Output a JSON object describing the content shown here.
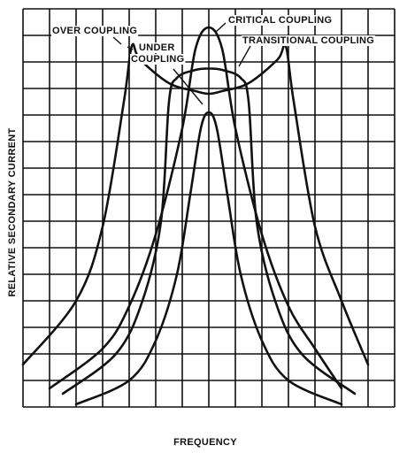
{
  "chart_data": {
    "type": "line",
    "xlabel": "FREQUENCY",
    "ylabel": "RELATIVE SECONDARY CURRENT",
    "grid": true,
    "annotations": [
      {
        "text": "OVER COUPLING",
        "target": "over-coupling"
      },
      {
        "text": "CRITICAL COUPLING",
        "target": "critical-coupling"
      },
      {
        "text": "TRANSITIONAL COUPLING",
        "target": "transitional-coupling"
      },
      {
        "text": "UNDER",
        "target": "under-coupling"
      },
      {
        "text": "COUPLING",
        "target": "under-coupling"
      }
    ],
    "xlim": [
      0,
      14
    ],
    "ylim": [
      0,
      15
    ],
    "series": [
      {
        "name": "OVER COUPLING",
        "key": "over-coupling",
        "x": [
          0,
          2,
          3,
          3.8,
          4.1,
          4.4,
          5.5,
          6.5,
          7,
          7.5,
          8.5,
          9.6,
          9.9,
          10.2,
          11,
          12,
          13
        ],
        "y": [
          1.6,
          4,
          6.8,
          11.5,
          13.6,
          13.1,
          12.2,
          11.9,
          11.8,
          11.9,
          12.2,
          13.1,
          13.6,
          11.5,
          6.8,
          4,
          1.6
        ]
      },
      {
        "name": "CRITICAL COUPLING",
        "key": "critical-coupling",
        "x": [
          1,
          3,
          4,
          5,
          6,
          6.5,
          7,
          7.5,
          8,
          9,
          10,
          11,
          12
        ],
        "y": [
          0.7,
          2.2,
          3.8,
          6.5,
          10.5,
          13.5,
          14.3,
          13.5,
          10.5,
          6.5,
          3.8,
          2.2,
          0.7
        ]
      },
      {
        "name": "TRANSITIONAL COUPLING",
        "key": "transitional-coupling",
        "x": [
          1.5,
          3.5,
          4.5,
          5.2,
          5.5,
          5.8,
          6.5,
          7,
          7.5,
          8.2,
          8.5,
          8.8,
          9.5,
          10.5,
          12.5
        ],
        "y": [
          0.5,
          2,
          4,
          7,
          11.5,
          12.4,
          12.7,
          12.75,
          12.7,
          12.4,
          11.5,
          7,
          4,
          2,
          0.5
        ]
      },
      {
        "name": "UNDER COUPLING",
        "key": "under-coupling",
        "x": [
          2,
          4,
          5,
          5.8,
          6.3,
          6.7,
          7,
          7.3,
          7.7,
          8.2,
          9,
          10,
          12
        ],
        "y": [
          0.1,
          1,
          2.5,
          5,
          8,
          10.5,
          11.1,
          10.5,
          8,
          5,
          2.5,
          1,
          0.1
        ]
      }
    ]
  }
}
